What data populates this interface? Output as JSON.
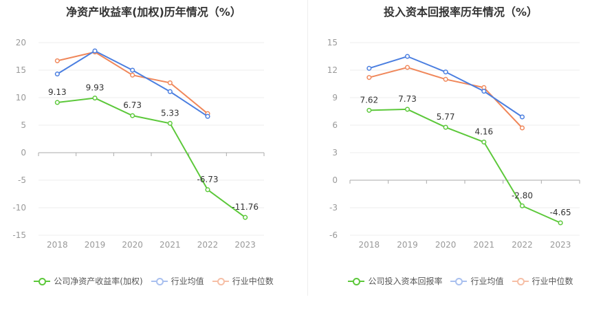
{
  "chart_data": [
    {
      "type": "line",
      "title": "净资产收益率(加权)历年情况（%）",
      "categories": [
        "2018",
        "2019",
        "2020",
        "2021",
        "2022",
        "2023"
      ],
      "ylim": [
        -15,
        20
      ],
      "yticks": [
        -15,
        -10,
        -5,
        0,
        5,
        10,
        15,
        20
      ],
      "series": [
        {
          "name": "公司净资产收益率(加权)",
          "color": "#5cc83a",
          "values": [
            9.13,
            9.93,
            6.73,
            5.33,
            -6.73,
            -11.76
          ],
          "labels": [
            "9.13",
            "9.93",
            "6.73",
            "5.33",
            "-6.73",
            "-11.76"
          ]
        },
        {
          "name": "行业均值",
          "color": "#4a7ee0",
          "values": [
            14.3,
            18.5,
            15.0,
            11.1,
            6.6,
            null
          ]
        },
        {
          "name": "行业中位数",
          "color": "#f0875a",
          "values": [
            16.7,
            18.3,
            14.1,
            12.7,
            7.1,
            null
          ]
        }
      ],
      "grid": true,
      "legend": "bottom"
    },
    {
      "type": "line",
      "title": "投入资本回报率历年情况（%）",
      "categories": [
        "2018",
        "2019",
        "2020",
        "2021",
        "2022",
        "2023"
      ],
      "ylim": [
        -6,
        15
      ],
      "yticks": [
        -6,
        -3,
        0,
        3,
        6,
        9,
        12,
        15
      ],
      "series": [
        {
          "name": "公司投入资本回报率",
          "color": "#5cc83a",
          "values": [
            7.62,
            7.73,
            5.77,
            4.16,
            -2.8,
            -4.65
          ],
          "labels": [
            "7.62",
            "7.73",
            "5.77",
            "4.16",
            "-2.80",
            "-4.65"
          ]
        },
        {
          "name": "行业均值",
          "color": "#4a7ee0",
          "values": [
            12.2,
            13.5,
            11.8,
            9.7,
            6.9,
            null
          ]
        },
        {
          "name": "行业中位数",
          "color": "#f0875a",
          "values": [
            11.2,
            12.3,
            11.0,
            10.1,
            5.7,
            null
          ]
        }
      ],
      "grid": true,
      "legend": "bottom"
    }
  ]
}
